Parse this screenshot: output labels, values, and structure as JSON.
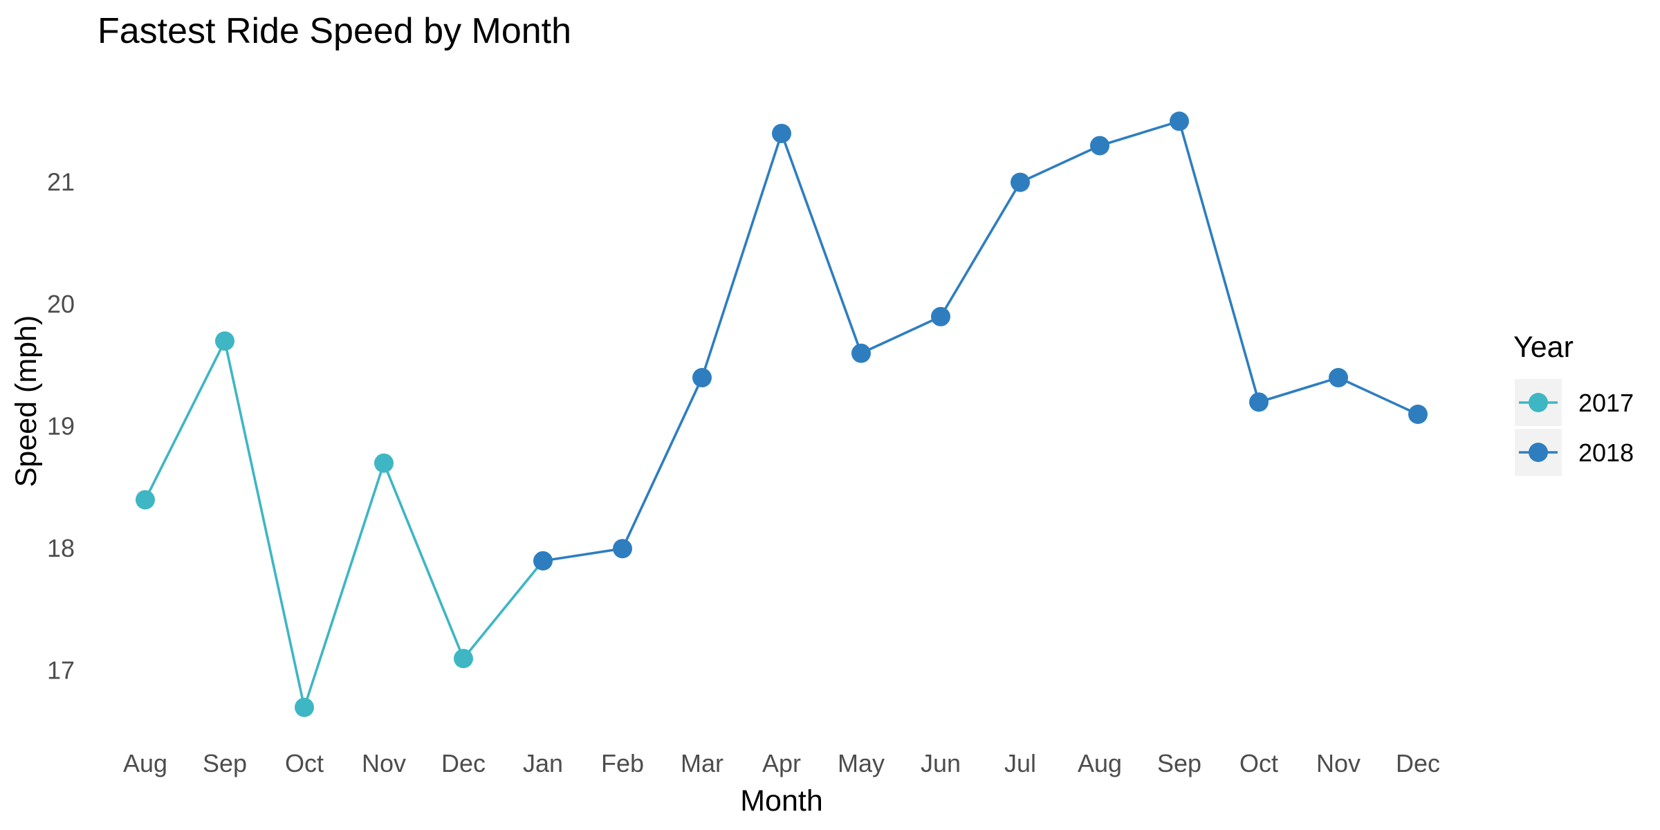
{
  "chart_data": {
    "type": "line",
    "title": "Fastest Ride Speed by Month",
    "xlabel": "Month",
    "ylabel": "Speed (mph)",
    "categories": [
      "Aug",
      "Sep",
      "Oct",
      "Nov",
      "Dec",
      "Jan",
      "Feb",
      "Mar",
      "Apr",
      "May",
      "Jun",
      "Jul",
      "Aug",
      "Sep",
      "Oct",
      "Nov",
      "Dec"
    ],
    "yticks": [
      17,
      18,
      19,
      20,
      21
    ],
    "ylim": [
      16.5,
      21.7
    ],
    "grid": false,
    "legend": {
      "title": "Year",
      "position": "right"
    },
    "series": [
      {
        "name": "2017",
        "color": "#3eb6c4",
        "points": [
          {
            "x": "Aug",
            "y": 18.4
          },
          {
            "x": "Sep",
            "y": 19.7
          },
          {
            "x": "Oct",
            "y": 16.7
          },
          {
            "x": "Nov",
            "y": 18.7
          },
          {
            "x": "Dec",
            "y": 17.1
          },
          {
            "x": "Jan",
            "y": 17.9
          }
        ],
        "marker_count": 5
      },
      {
        "name": "2018",
        "color": "#2e7ebf",
        "points": [
          {
            "x": "Jan",
            "y": 17.9
          },
          {
            "x": "Feb",
            "y": 18.0
          },
          {
            "x": "Mar",
            "y": 19.4
          },
          {
            "x": "Apr",
            "y": 21.4
          },
          {
            "x": "May",
            "y": 19.6
          },
          {
            "x": "Jun",
            "y": 19.9
          },
          {
            "x": "Jul",
            "y": 21.0
          },
          {
            "x": "Aug",
            "y": 21.3
          },
          {
            "x": "Sep",
            "y": 21.5
          },
          {
            "x": "Oct",
            "y": 19.2
          },
          {
            "x": "Nov",
            "y": 19.4
          },
          {
            "x": "Dec",
            "y": 19.1
          }
        ],
        "marker_count": 12
      }
    ]
  }
}
